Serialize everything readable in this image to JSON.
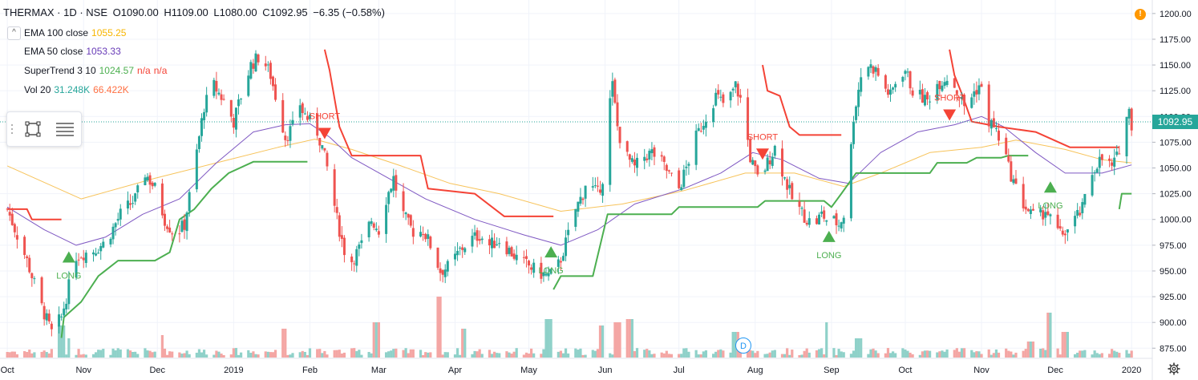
{
  "header": {
    "symbol": "THERMAX · 1D · NSE",
    "open": "O1090.00",
    "high": "H1109.00",
    "low": "L1080.00",
    "close": "C1092.95",
    "change": "−6.35 (−0.58%)"
  },
  "indicators": [
    {
      "label": "EMA 100 close",
      "values": [
        "1055.25"
      ],
      "colors": [
        "#f7b500"
      ]
    },
    {
      "label": "EMA 50 close",
      "values": [
        "1053.33"
      ],
      "colors": [
        "#673ab7"
      ]
    },
    {
      "label": "SuperTrend 3 10",
      "values": [
        "1024.57",
        "n/a",
        "n/a"
      ],
      "colors": [
        "#4caf50",
        "#f44336",
        "#f44336"
      ]
    },
    {
      "label": "Vol 20",
      "values": [
        "31.248K",
        "66.422K"
      ],
      "colors": [
        "#26a69a",
        "#ff7043"
      ]
    }
  ],
  "alert_badge": "!",
  "last_price": "1092.95",
  "dividend_badge": "D",
  "colors": {
    "up": "#26a69a",
    "down": "#ef5350",
    "ema100": "#f7c35a",
    "ema50": "#7e57c2",
    "st_up": "#4caf50",
    "st_down": "#f44336",
    "vol_up": "#8fd1c9",
    "vol_down": "#f4a6a4"
  },
  "chart_data": {
    "type": "candlestick",
    "symbol": "THERMAX",
    "interval": "1D",
    "y_ticks": [
      875,
      900,
      925,
      950,
      975,
      1000,
      1025,
      1050,
      1075,
      1100,
      1125,
      1150,
      1175,
      1200
    ],
    "y_tick_labels": [
      "875.00",
      "900.00",
      "925.00",
      "950.00",
      "975.00",
      "1000.00",
      "1025.00",
      "1050.00",
      "1075.00",
      "1100.00",
      "1125.00",
      "1150.00",
      "1175.00",
      "1200.00"
    ],
    "ylim": [
      862,
      1210
    ],
    "x_labels": [
      "Oct",
      "Nov",
      "Dec",
      "2019",
      "Feb",
      "Mar",
      "Apr",
      "May",
      "Jun",
      "Jul",
      "Aug",
      "Sep",
      "Oct",
      "Nov",
      "Dec",
      "2020"
    ],
    "x_label_days": [
      0,
      31,
      61,
      92,
      123,
      151,
      182,
      212,
      243,
      273,
      304,
      335,
      365,
      396,
      426,
      457
    ],
    "close_path": [
      [
        0,
        1010
      ],
      [
        8,
        960
      ],
      [
        14,
        915
      ],
      [
        18,
        890
      ],
      [
        22,
        905
      ],
      [
        28,
        965
      ],
      [
        35,
        970
      ],
      [
        40,
        978
      ],
      [
        46,
        1005
      ],
      [
        52,
        1020
      ],
      [
        56,
        1045
      ],
      [
        60,
        1030
      ],
      [
        64,
        1000
      ],
      [
        68,
        985
      ],
      [
        72,
        995
      ],
      [
        76,
        1050
      ],
      [
        80,
        1110
      ],
      [
        84,
        1130
      ],
      [
        88,
        1115
      ],
      [
        92,
        1095
      ],
      [
        95,
        1120
      ],
      [
        99,
        1150
      ],
      [
        103,
        1160
      ],
      [
        107,
        1140
      ],
      [
        110,
        1110
      ],
      [
        113,
        1080
      ],
      [
        116,
        1090
      ],
      [
        118,
        1120
      ],
      [
        120,
        1105
      ],
      [
        123,
        1095
      ],
      [
        126,
        1085
      ],
      [
        128,
        1070
      ],
      [
        131,
        1040
      ],
      [
        134,
        1000
      ],
      [
        137,
        970
      ],
      [
        140,
        960
      ],
      [
        144,
        975
      ],
      [
        148,
        1000
      ],
      [
        151,
        990
      ],
      [
        154,
        1020
      ],
      [
        157,
        1040
      ],
      [
        160,
        1010
      ],
      [
        163,
        995
      ],
      [
        166,
        985
      ],
      [
        169,
        990
      ],
      [
        172,
        975
      ],
      [
        176,
        950
      ],
      [
        180,
        955
      ],
      [
        184,
        970
      ],
      [
        188,
        980
      ],
      [
        192,
        985
      ],
      [
        196,
        975
      ],
      [
        200,
        980
      ],
      [
        204,
        970
      ],
      [
        208,
        960
      ],
      [
        212,
        955
      ],
      [
        216,
        948
      ],
      [
        220,
        945
      ],
      [
        223,
        950
      ],
      [
        225,
        962
      ],
      [
        228,
        985
      ],
      [
        231,
        1010
      ],
      [
        234,
        1025
      ],
      [
        236,
        1045
      ],
      [
        238,
        1030
      ],
      [
        240,
        1025
      ],
      [
        242,
        1040
      ],
      [
        244,
        1100
      ],
      [
        246,
        1130
      ],
      [
        248,
        1090
      ],
      [
        250,
        1070
      ],
      [
        252,
        1060
      ],
      [
        255,
        1050
      ],
      [
        258,
        1060
      ],
      [
        262,
        1065
      ],
      [
        266,
        1055
      ],
      [
        270,
        1040
      ],
      [
        273,
        1030
      ],
      [
        276,
        1050
      ],
      [
        280,
        1080
      ],
      [
        284,
        1100
      ],
      [
        288,
        1120
      ],
      [
        292,
        1110
      ],
      [
        296,
        1130
      ],
      [
        299,
        1110
      ],
      [
        302,
        1060
      ],
      [
        305,
        1040
      ],
      [
        308,
        1050
      ],
      [
        312,
        1070
      ],
      [
        316,
        1040
      ],
      [
        319,
        1020
      ],
      [
        322,
        1010
      ],
      [
        325,
        1000
      ],
      [
        328,
        995
      ],
      [
        331,
        1005
      ],
      [
        333,
        1000
      ],
      [
        335,
        1000
      ],
      [
        338,
        995
      ],
      [
        341,
        1010
      ],
      [
        344,
        1100
      ],
      [
        347,
        1140
      ],
      [
        350,
        1150
      ],
      [
        353,
        1145
      ],
      [
        356,
        1130
      ],
      [
        359,
        1120
      ],
      [
        362,
        1140
      ],
      [
        365,
        1145
      ],
      [
        368,
        1125
      ],
      [
        371,
        1120
      ],
      [
        374,
        1115
      ],
      [
        377,
        1130
      ],
      [
        380,
        1135
      ],
      [
        383,
        1140
      ],
      [
        386,
        1125
      ],
      [
        389,
        1110
      ],
      [
        392,
        1120
      ],
      [
        395,
        1130
      ],
      [
        397,
        1120
      ],
      [
        399,
        1095
      ],
      [
        401,
        1090
      ],
      [
        403,
        1080
      ],
      [
        405,
        1070
      ],
      [
        407,
        1050
      ],
      [
        410,
        1030
      ],
      [
        413,
        1015
      ],
      [
        416,
        1005
      ],
      [
        419,
        1000
      ],
      [
        422,
        1010
      ],
      [
        425,
        995
      ],
      [
        428,
        985
      ],
      [
        431,
        990
      ],
      [
        434,
        1000
      ],
      [
        437,
        1010
      ],
      [
        440,
        1040
      ],
      [
        443,
        1055
      ],
      [
        446,
        1060
      ],
      [
        449,
        1050
      ],
      [
        451,
        1060
      ],
      [
        453,
        1080
      ],
      [
        455,
        1100
      ],
      [
        456,
        1105
      ],
      [
        457,
        1093
      ]
    ],
    "ema50_path": [
      [
        0,
        1012
      ],
      [
        15,
        990
      ],
      [
        28,
        975
      ],
      [
        40,
        983
      ],
      [
        55,
        1005
      ],
      [
        70,
        1020
      ],
      [
        85,
        1055
      ],
      [
        100,
        1085
      ],
      [
        113,
        1092
      ],
      [
        123,
        1093
      ],
      [
        131,
        1080
      ],
      [
        140,
        1060
      ],
      [
        155,
        1040
      ],
      [
        170,
        1020
      ],
      [
        190,
        1000
      ],
      [
        210,
        985
      ],
      [
        225,
        975
      ],
      [
        240,
        990
      ],
      [
        255,
        1015
      ],
      [
        275,
        1030
      ],
      [
        290,
        1045
      ],
      [
        303,
        1065
      ],
      [
        315,
        1058
      ],
      [
        330,
        1040
      ],
      [
        342,
        1035
      ],
      [
        355,
        1065
      ],
      [
        370,
        1085
      ],
      [
        385,
        1092
      ],
      [
        396,
        1100
      ],
      [
        405,
        1090
      ],
      [
        418,
        1065
      ],
      [
        430,
        1045
      ],
      [
        445,
        1045
      ],
      [
        457,
        1053
      ]
    ],
    "ema100_path": [
      [
        0,
        1052
      ],
      [
        30,
        1020
      ],
      [
        60,
        1040
      ],
      [
        85,
        1055
      ],
      [
        110,
        1070
      ],
      [
        125,
        1078
      ],
      [
        140,
        1068
      ],
      [
        160,
        1052
      ],
      [
        180,
        1035
      ],
      [
        200,
        1025
      ],
      [
        225,
        1008
      ],
      [
        250,
        1015
      ],
      [
        275,
        1028
      ],
      [
        300,
        1045
      ],
      [
        320,
        1045
      ],
      [
        340,
        1032
      ],
      [
        355,
        1045
      ],
      [
        375,
        1065
      ],
      [
        396,
        1070
      ],
      [
        410,
        1077
      ],
      [
        430,
        1068
      ],
      [
        445,
        1058
      ],
      [
        457,
        1055
      ]
    ],
    "supertrend_up": [
      [
        [
          22,
          885
        ],
        [
          23,
          905
        ],
        [
          30,
          920
        ],
        [
          37,
          945
        ],
        [
          45,
          960
        ],
        [
          60,
          960
        ],
        [
          66,
          968
        ],
        [
          70,
          1000
        ],
        [
          76,
          1010
        ],
        [
          83,
          1030
        ],
        [
          90,
          1045
        ],
        [
          100,
          1056
        ],
        [
          122,
          1056
        ]
      ],
      [
        [
          222,
          932
        ],
        [
          225,
          945
        ],
        [
          238,
          945
        ],
        [
          244,
          1005
        ],
        [
          270,
          1005
        ],
        [
          273,
          1012
        ],
        [
          305,
          1012
        ],
        [
          308,
          1018
        ],
        [
          332,
          1018
        ],
        [
          335,
          1012
        ],
        [
          339,
          1025
        ],
        [
          345,
          1045
        ],
        [
          375,
          1045
        ],
        [
          378,
          1055
        ],
        [
          390,
          1055
        ],
        [
          394,
          1060
        ],
        [
          404,
          1060
        ],
        [
          407,
          1062
        ],
        [
          415,
          1062
        ]
      ],
      [
        [
          452,
          1010
        ],
        [
          453,
          1025
        ],
        [
          457,
          1025
        ]
      ]
    ],
    "supertrend_down": [
      [
        [
          0,
          1010
        ],
        [
          8,
          1010
        ],
        [
          10,
          1000
        ],
        [
          22,
          1000
        ]
      ],
      [
        [
          129,
          1165
        ],
        [
          131,
          1145
        ],
        [
          135,
          1090
        ],
        [
          140,
          1062
        ],
        [
          168,
          1062
        ],
        [
          171,
          1030
        ],
        [
          190,
          1025
        ],
        [
          202,
          1003
        ],
        [
          222,
          1003
        ]
      ],
      [
        [
          307,
          1150
        ],
        [
          309,
          1125
        ],
        [
          314,
          1120
        ],
        [
          318,
          1090
        ],
        [
          322,
          1082
        ],
        [
          339,
          1082
        ]
      ],
      [
        [
          383,
          1165
        ],
        [
          385,
          1140
        ],
        [
          388,
          1122
        ],
        [
          392,
          1095
        ],
        [
          399,
          1092
        ],
        [
          403,
          1090
        ],
        [
          418,
          1085
        ],
        [
          432,
          1070
        ],
        [
          452,
          1070
        ]
      ]
    ],
    "signals": [
      {
        "type": "LONG",
        "day": 25,
        "price": 962
      },
      {
        "type": "SHORT",
        "day": 129,
        "price": 1085
      },
      {
        "type": "LONG",
        "day": 221,
        "price": 967
      },
      {
        "type": "SHORT",
        "day": 307,
        "price": 1065
      },
      {
        "type": "LONG",
        "day": 334,
        "price": 982
      },
      {
        "type": "SHORT",
        "day": 383,
        "price": 1103
      },
      {
        "type": "LONG",
        "day": 424,
        "price": 1030
      }
    ],
    "volume_spikes": [
      [
        22,
        0.5
      ],
      [
        26,
        0.3
      ],
      [
        62,
        0.35
      ],
      [
        112,
        0.45
      ],
      [
        150,
        0.55
      ],
      [
        175,
        0.95
      ],
      [
        186,
        0.45
      ],
      [
        220,
        0.6
      ],
      [
        242,
        0.5
      ],
      [
        248,
        0.55
      ],
      [
        253,
        0.6
      ],
      [
        296,
        0.4
      ],
      [
        334,
        0.55
      ],
      [
        346,
        0.3
      ],
      [
        416,
        0.25
      ],
      [
        424,
        0.7
      ],
      [
        430,
        0.4
      ]
    ]
  }
}
